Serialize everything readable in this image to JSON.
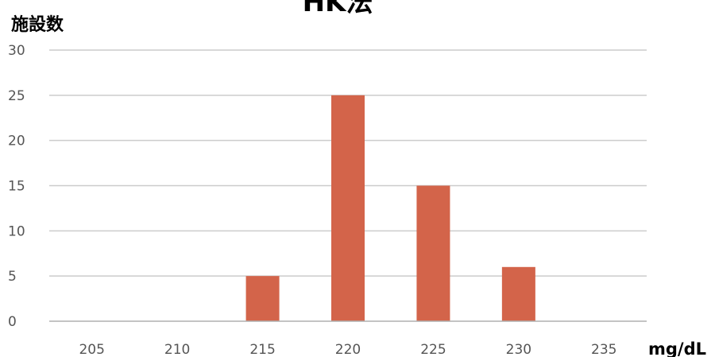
{
  "chart_data": {
    "type": "bar",
    "title": "HK法",
    "ylabel": "施設数",
    "xlabel": "mg/dL",
    "categories": [
      "205",
      "210",
      "215",
      "220",
      "225",
      "230",
      "235"
    ],
    "values": [
      0,
      0,
      5,
      25,
      15,
      6,
      0
    ],
    "ylim": [
      0,
      30
    ],
    "yticks": [
      0,
      5,
      10,
      15,
      20,
      25,
      30
    ],
    "grid": true,
    "legend": "none",
    "bar_color": "#d3644a",
    "grid_color": "#cccccc",
    "axis_color": "#b0b0b0"
  }
}
